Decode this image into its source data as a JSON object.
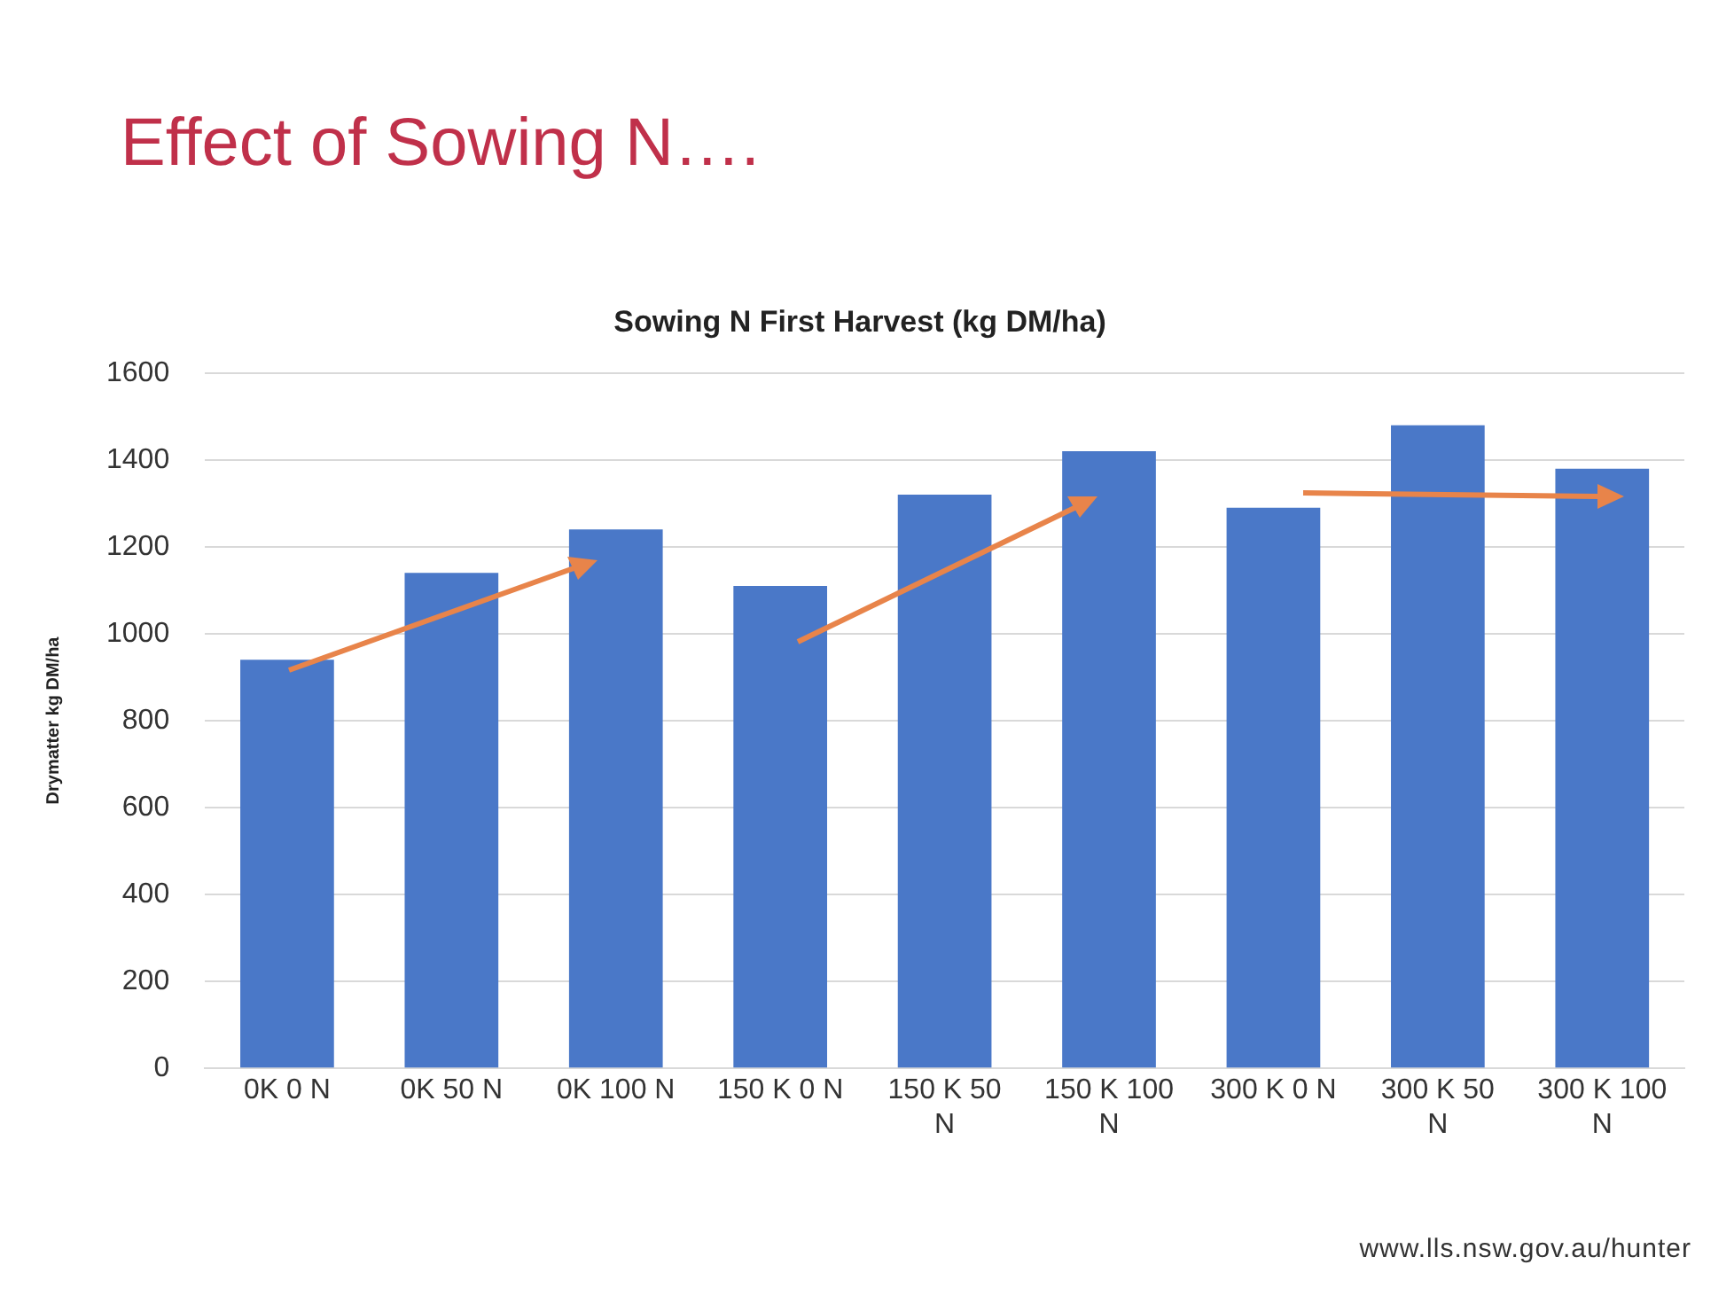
{
  "chart_data": {
    "type": "bar",
    "title": "Sowing N First Harvest (kg DM/ha)",
    "ylabel": "Drymatter kg DM/ha",
    "categories": [
      "0K 0 N",
      "0K 50 N",
      "0K 100 N",
      "150 K 0 N",
      "150 K 50 N",
      "150 K 100 N",
      "300 K 0 N",
      "300 K 50 N",
      "300 K 100 N"
    ],
    "values": [
      940,
      1140,
      1240,
      1110,
      1320,
      1420,
      1290,
      1480,
      1380
    ],
    "color": "#4a78c8",
    "ylim": [
      0,
      1600
    ],
    "yticks": [
      0,
      200,
      400,
      600,
      800,
      1000,
      1200,
      1400,
      1600
    ],
    "grid": "y",
    "legend": false,
    "annotations": [
      "Effect of Sowing N….",
      "www.lls.nsw.gov.au/hunter"
    ]
  }
}
